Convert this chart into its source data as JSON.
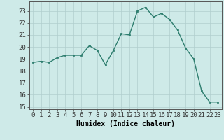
{
  "x": [
    0,
    1,
    2,
    3,
    4,
    5,
    6,
    7,
    8,
    9,
    10,
    11,
    12,
    13,
    14,
    15,
    16,
    17,
    18,
    19,
    20,
    21,
    22,
    23
  ],
  "y": [
    18.7,
    18.8,
    18.7,
    19.1,
    19.3,
    19.3,
    19.3,
    20.1,
    19.7,
    18.5,
    19.7,
    21.1,
    21.0,
    23.0,
    23.3,
    22.5,
    22.8,
    22.3,
    21.4,
    19.9,
    19.0,
    16.3,
    15.4,
    15.4
  ],
  "line_color": "#2d7d6e",
  "marker": "s",
  "markersize": 2.0,
  "linewidth": 1.0,
  "bg_color": "#ceeae8",
  "grid_color": "#b0cece",
  "xlabel": "Humidex (Indice chaleur)",
  "xlabel_fontsize": 7,
  "xlabel_weight": "bold",
  "ylabel_ticks": [
    15,
    16,
    17,
    18,
    19,
    20,
    21,
    22,
    23
  ],
  "xlim": [
    -0.5,
    23.5
  ],
  "ylim": [
    14.8,
    23.8
  ],
  "tick_fontsize": 6.5
}
